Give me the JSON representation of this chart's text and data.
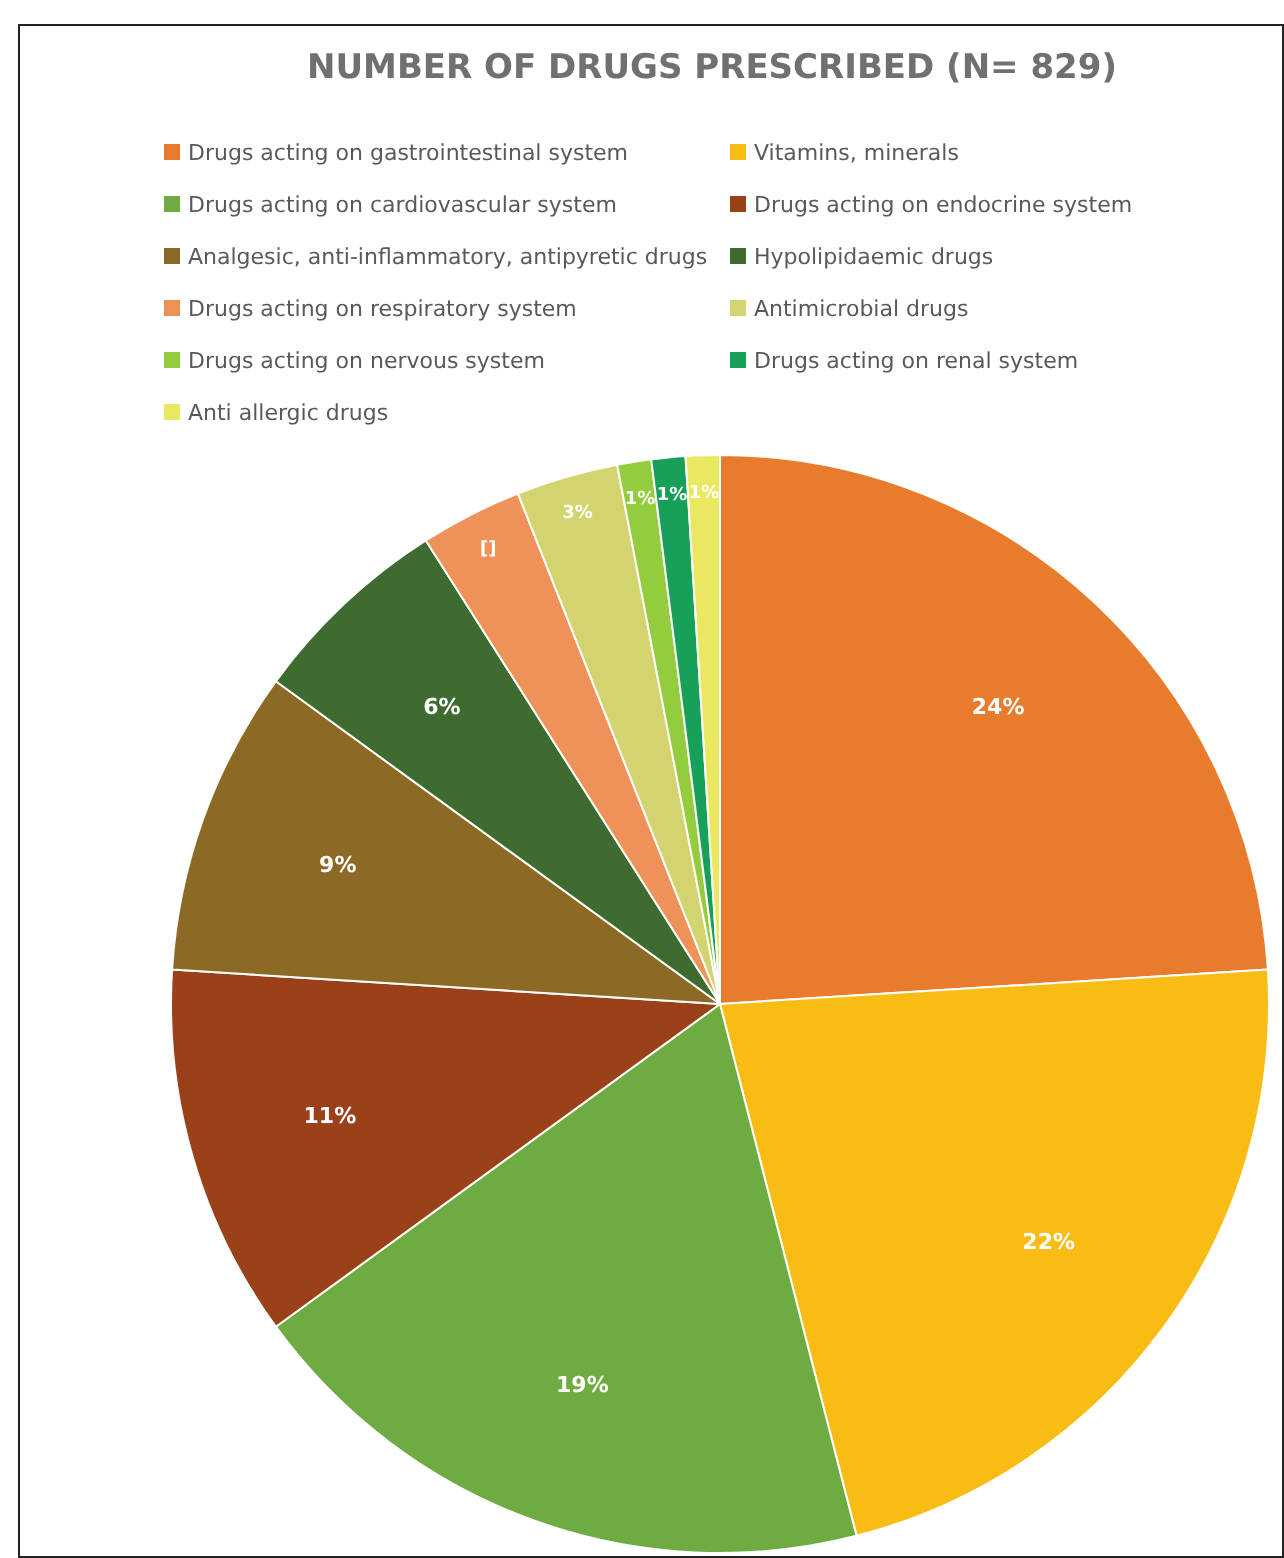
{
  "chart_data": {
    "type": "pie",
    "title": "NUMBER OF DRUGS PRESCRIBED (N= 829)",
    "categories": [
      "Drugs acting on gastrointestinal system",
      "Vitamins, minerals",
      "Drugs acting on cardiovascular system",
      "Drugs acting on endocrine system",
      "Analgesic, anti-inflammatory, antipyretic drugs",
      "Hypolipidaemic drugs",
      "Drugs acting on respiratory system",
      "Antimicrobial drugs",
      "Drugs acting on nervous system",
      "Drugs acting on renal system",
      "Anti allergic drugs"
    ],
    "values": [
      24,
      22,
      19,
      11,
      9,
      6,
      3,
      3,
      1,
      1,
      1
    ],
    "value_labels": [
      "24%",
      "22%",
      "19%",
      "11%",
      "9%",
      "6%",
      "[]",
      "3%",
      "1%",
      "1%",
      "1%"
    ],
    "colors": [
      "#e97b2d",
      "#f9bc15",
      "#6eab41",
      "#9b4119",
      "#8c6a25",
      "#3e6b30",
      "#ef925a",
      "#d3d46f",
      "#93cc3c",
      "#17a058",
      "#eae860"
    ],
    "legend": "top"
  }
}
